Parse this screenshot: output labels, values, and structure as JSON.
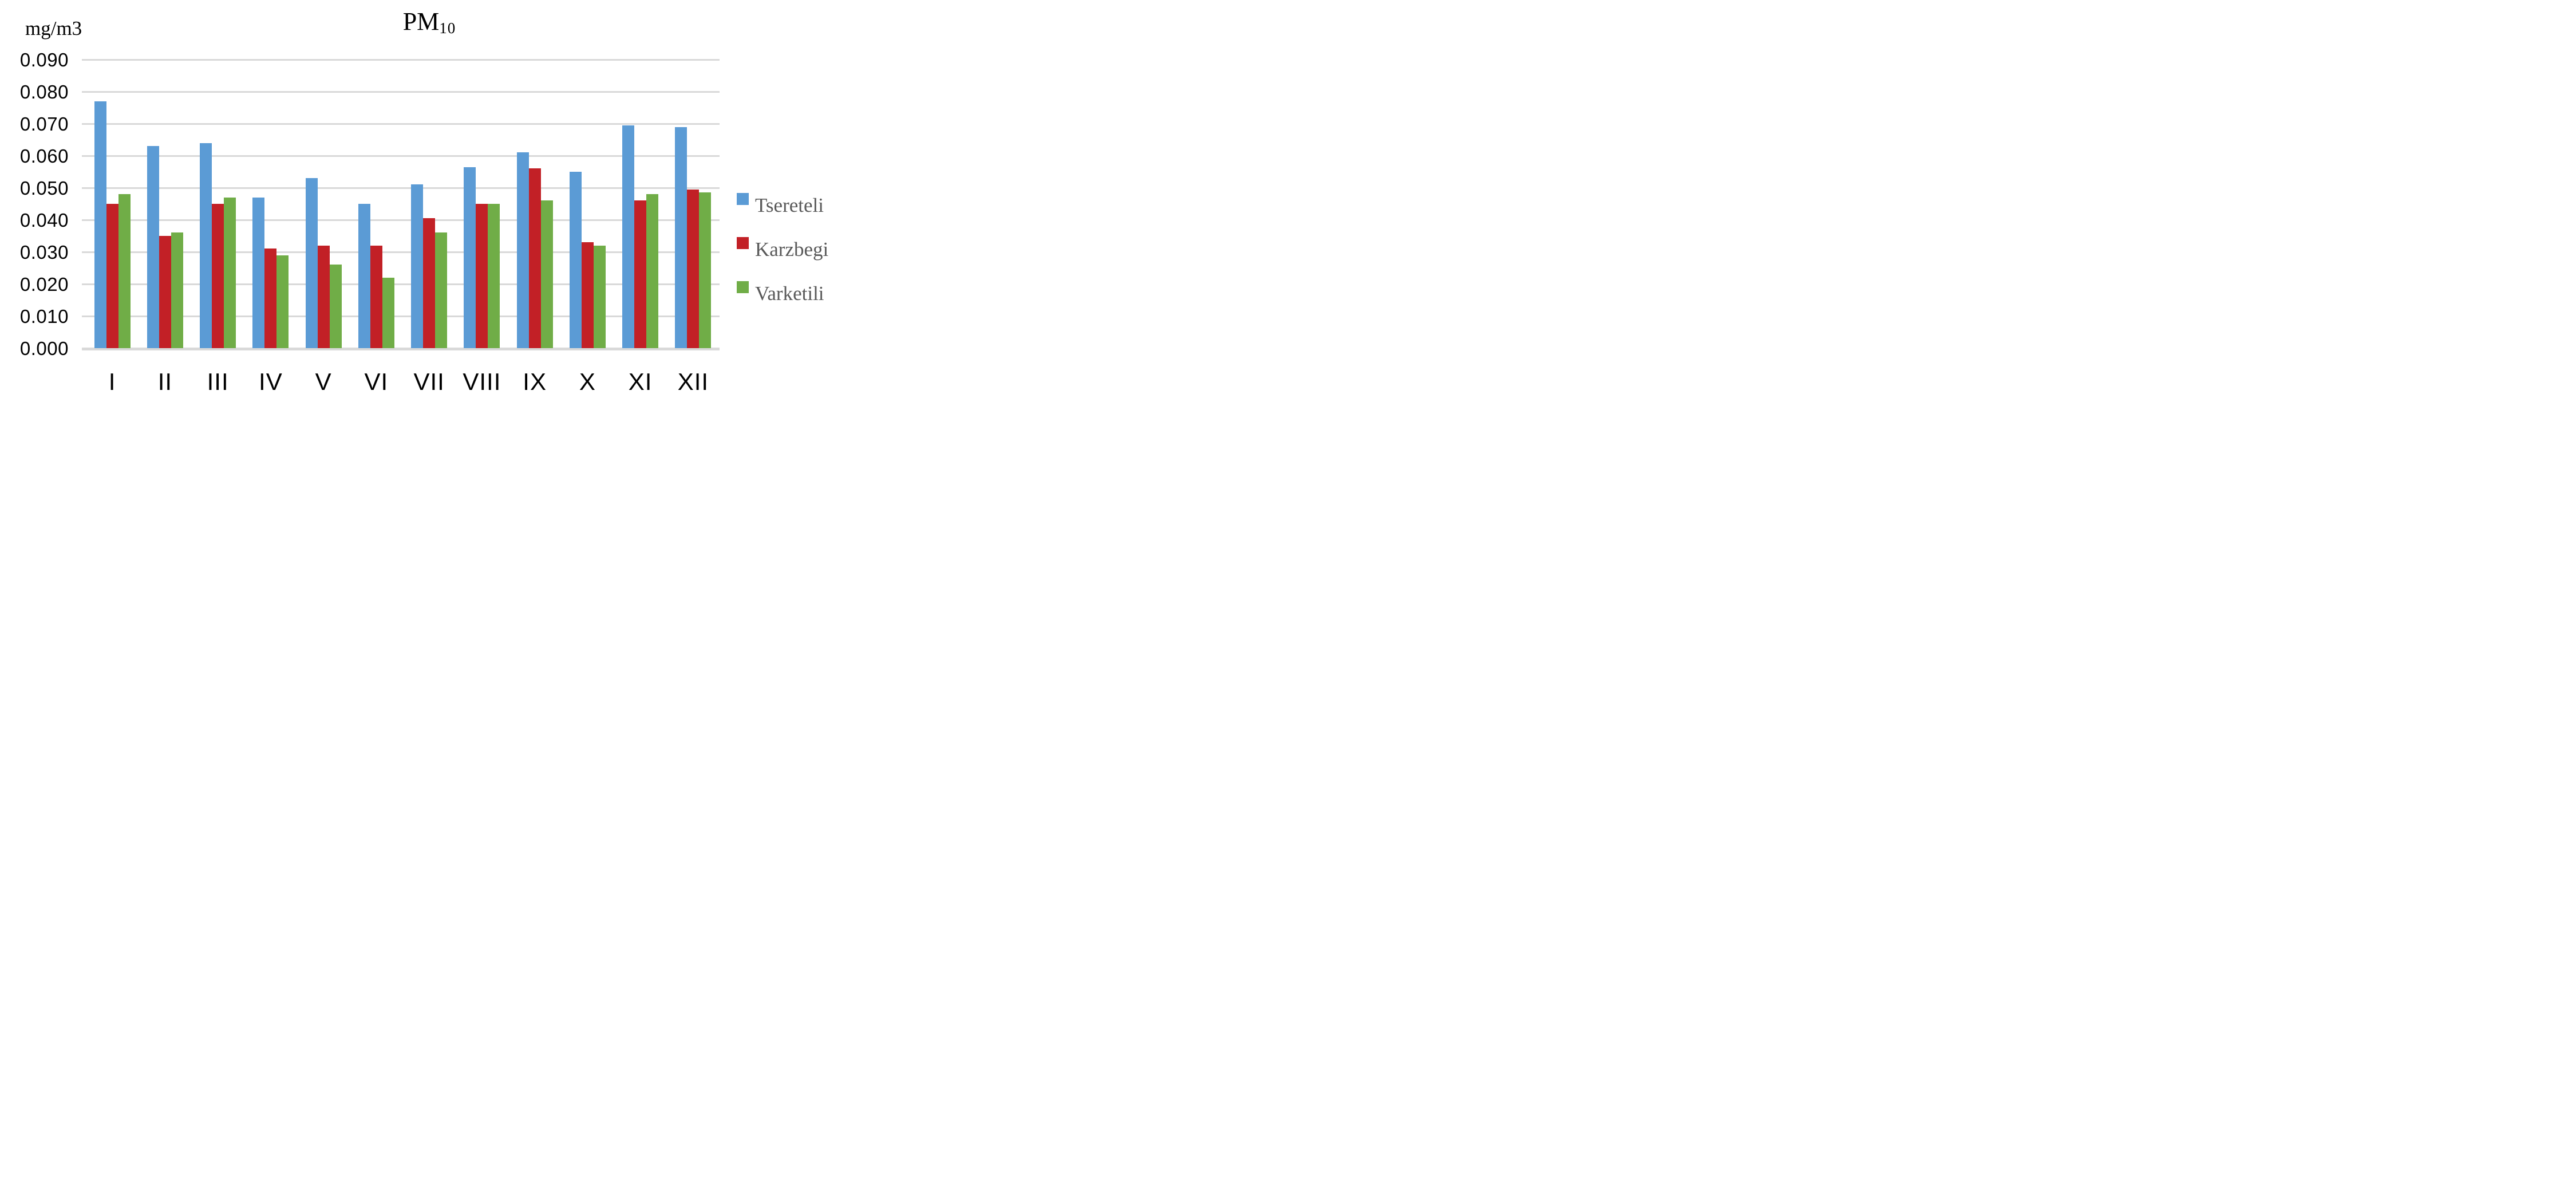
{
  "title": {
    "text": "PM",
    "subscript": "10"
  },
  "y_axis_unit_label": "mg/m3",
  "colors": {
    "gridline": "#D9D9D9",
    "axis_line": "#D9D9D9",
    "tick_text": "#000000",
    "legend_text": "#595959",
    "background": "#FFFFFF"
  },
  "chart_data": {
    "type": "bar",
    "title": "PM10",
    "ylabel": "mg/m3",
    "xlabel": "",
    "categories": [
      "I",
      "II",
      "III",
      "IV",
      "V",
      "VI",
      "VII",
      "VIII",
      "IX",
      "X",
      "XI",
      "XII"
    ],
    "series": [
      {
        "name": "Tsereteli",
        "color": "#5B9BD5",
        "values": [
          0.077,
          0.063,
          0.064,
          0.047,
          0.053,
          0.045,
          0.051,
          0.0565,
          0.061,
          0.055,
          0.0695,
          0.069
        ]
      },
      {
        "name": "Karzbegi",
        "color": "#C22026",
        "values": [
          0.045,
          0.035,
          0.045,
          0.031,
          0.032,
          0.032,
          0.0405,
          0.045,
          0.056,
          0.033,
          0.046,
          0.0495
        ]
      },
      {
        "name": "Varketili",
        "color": "#70AD47",
        "values": [
          0.048,
          0.036,
          0.047,
          0.029,
          0.026,
          0.022,
          0.036,
          0.045,
          0.046,
          0.032,
          0.048,
          0.0485
        ]
      }
    ],
    "ylim": [
      0.0,
      0.09
    ],
    "y_tick_step": 0.01,
    "y_ticks": [
      "0.000",
      "0.010",
      "0.020",
      "0.030",
      "0.040",
      "0.050",
      "0.060",
      "0.070",
      "0.080",
      "0.090"
    ],
    "grid": true,
    "legend_position": "right"
  }
}
